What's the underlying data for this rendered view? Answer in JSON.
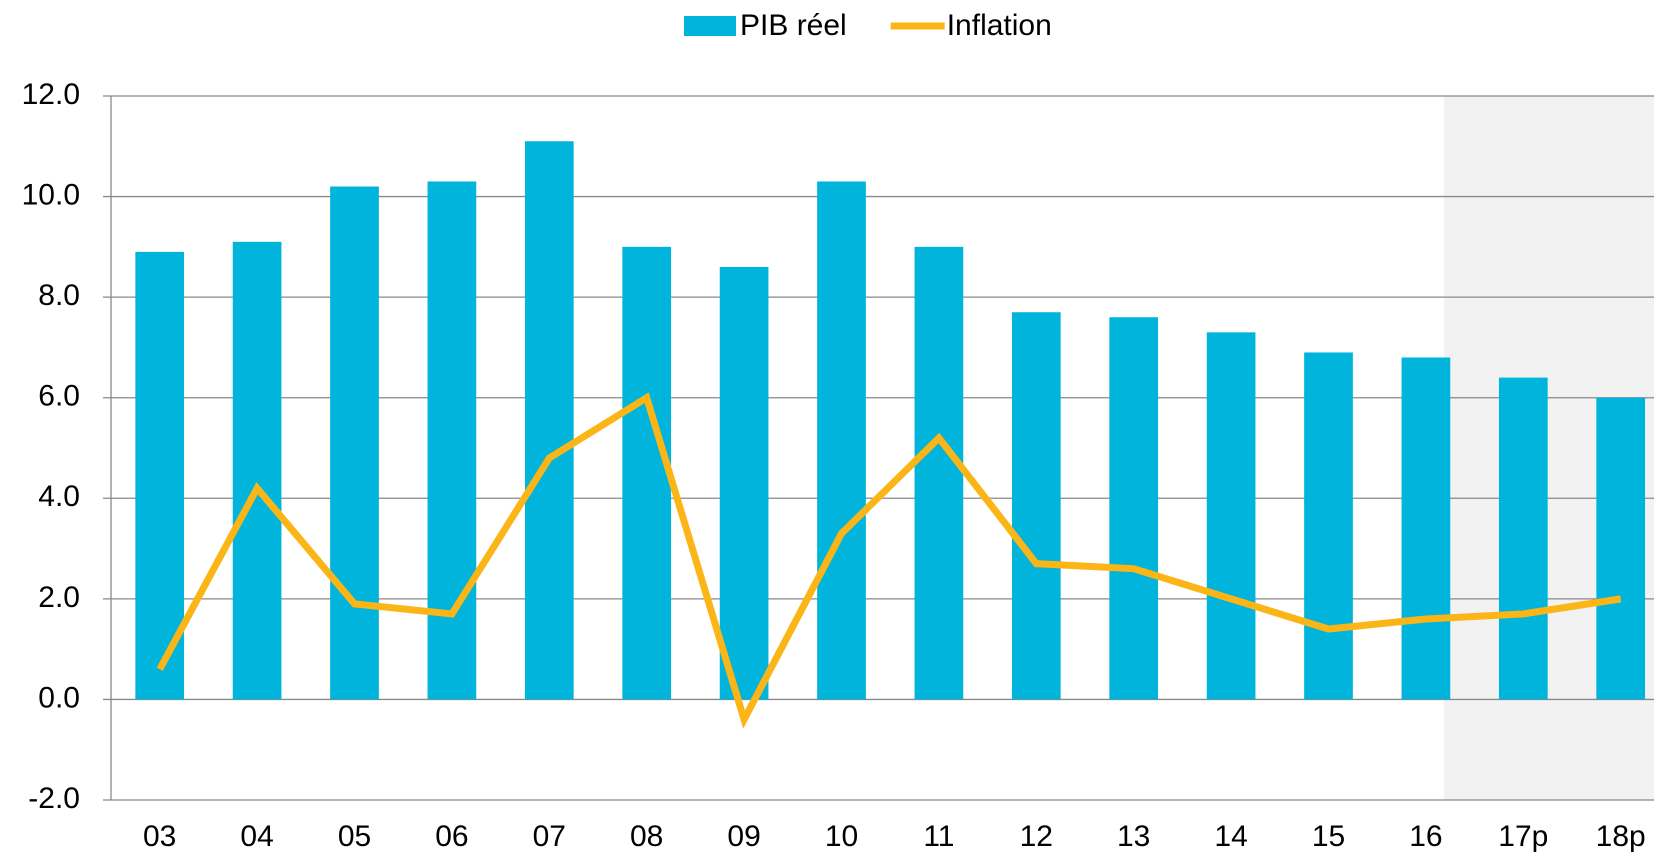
{
  "chart_data": {
    "type": "bar_line",
    "categories": [
      "03",
      "04",
      "05",
      "06",
      "07",
      "08",
      "09",
      "10",
      "11",
      "12",
      "13",
      "14",
      "15",
      "16",
      "17p",
      "18p"
    ],
    "series": [
      {
        "name": "PIB réel",
        "type": "bar",
        "color": "#00b4dc",
        "values": [
          8.9,
          9.1,
          10.2,
          10.3,
          11.1,
          9.0,
          8.6,
          10.3,
          9.0,
          7.7,
          7.6,
          7.3,
          6.9,
          6.8,
          6.4,
          6.0
        ]
      },
      {
        "name": "Inflation",
        "type": "line",
        "color": "#fbb516",
        "values": [
          0.6,
          4.2,
          1.9,
          1.7,
          4.8,
          6.0,
          -0.4,
          3.3,
          5.2,
          2.7,
          2.6,
          2.0,
          1.4,
          1.6,
          1.7,
          2.0
        ]
      }
    ],
    "ylim": [
      -2,
      12
    ],
    "yticks": [
      {
        "value": -2,
        "label": "-2.0"
      },
      {
        "value": 0,
        "label": "0.0"
      },
      {
        "value": 2,
        "label": "2.0"
      },
      {
        "value": 4,
        "label": "4.0"
      },
      {
        "value": 6,
        "label": "6.0"
      },
      {
        "value": 8,
        "label": "8.0"
      },
      {
        "value": 10,
        "label": "10.0"
      },
      {
        "value": 12,
        "label": "12.0"
      }
    ],
    "grid": true,
    "legend": "top"
  }
}
